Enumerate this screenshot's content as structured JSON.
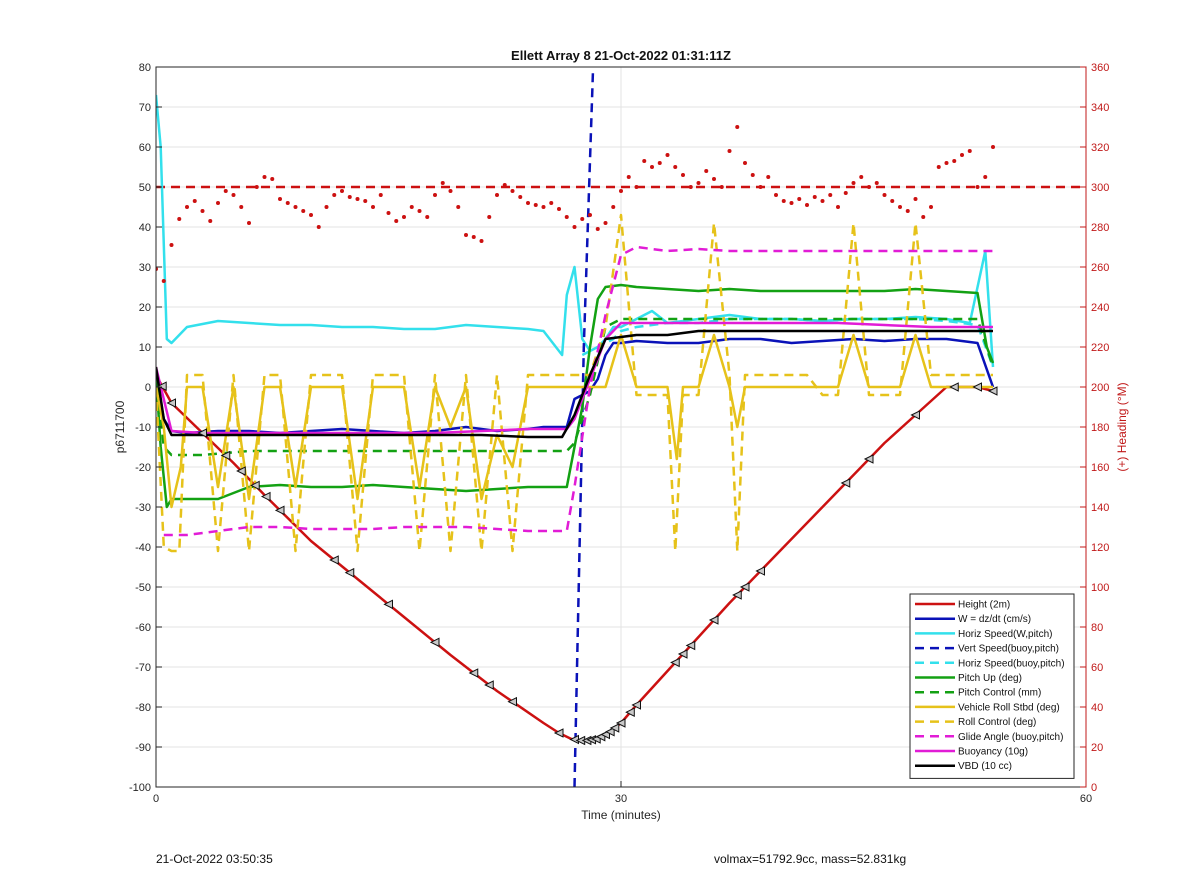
{
  "chart_data": {
    "type": "line",
    "title": "Ellett Array 8 21-Oct-2022 01:31:11Z",
    "xlabel": "Time (minutes)",
    "ylabel_left": "p6711700",
    "ylabel_right": "(+) Heading (°M)",
    "xlim": [
      0,
      60
    ],
    "ylim_left": [
      -100,
      80
    ],
    "ylim_right": [
      0,
      360
    ],
    "x_ticks": [
      0,
      30,
      60
    ],
    "y_ticks_left": [
      80,
      70,
      60,
      50,
      40,
      30,
      20,
      10,
      0,
      -10,
      -20,
      -30,
      -40,
      -50,
      -60,
      -70,
      -80,
      -90,
      -100
    ],
    "y_ticks_right": [
      360,
      340,
      320,
      300,
      280,
      260,
      240,
      220,
      200,
      180,
      160,
      140,
      120,
      100,
      80,
      60,
      40,
      20,
      0
    ],
    "grid": true,
    "legend_position": "bottom-right",
    "colors": {
      "red": "#cc1111",
      "blue": "#0a12b8",
      "cyan": "#33e0ec",
      "green": "#13a113",
      "yellow": "#e6c21a",
      "magenta": "#e11cd6",
      "black": "#000000",
      "right_axis": "#c01818"
    },
    "series": [
      {
        "name": "Height (2m)",
        "color": "red",
        "style": "solid",
        "axis": "left",
        "x": [
          0,
          1,
          3,
          5,
          7,
          10,
          13,
          16,
          19,
          22,
          25,
          26,
          26.8,
          27.6,
          28.4,
          29.2,
          30,
          31,
          33,
          35,
          37,
          39,
          41,
          43,
          45,
          47,
          49,
          51,
          53,
          54
        ],
        "y": [
          3,
          -4,
          -11.5,
          -19,
          -27,
          -38.5,
          -48,
          -57.5,
          -67,
          -76,
          -84,
          -86.5,
          -88,
          -88.5,
          -88,
          -86.5,
          -84,
          -79.5,
          -71,
          -62.5,
          -54,
          -46,
          -38,
          -30,
          -22,
          -14,
          -7,
          0,
          0,
          -1
        ]
      },
      {
        "name": "W = dz/dt (cm/s)",
        "color": "blue",
        "style": "solid",
        "axis": "left",
        "x": [
          0,
          0.5,
          1,
          2,
          4,
          6,
          8,
          10,
          12,
          14,
          16,
          18,
          20,
          22,
          24,
          25,
          26.5,
          27,
          27.5,
          28,
          28.5,
          29,
          29.5,
          30,
          31,
          33,
          35,
          37,
          39,
          41,
          43,
          45,
          47,
          49,
          51,
          53,
          54
        ],
        "y": [
          3,
          -8,
          -11,
          -11.5,
          -11,
          -11,
          -11.5,
          -11,
          -10.5,
          -11,
          -11.5,
          -11,
          -10,
          -11,
          -10.5,
          -10,
          -10,
          -3,
          -2,
          -1,
          2,
          8,
          11,
          11,
          11.5,
          11,
          11,
          12,
          12,
          11,
          11.5,
          12,
          11.5,
          12,
          12,
          11,
          0
        ]
      },
      {
        "name": "Horiz Speed(W,pitch)",
        "color": "cyan",
        "style": "solid",
        "axis": "left",
        "x": [
          0,
          0.3,
          0.7,
          1,
          2,
          4,
          6,
          8,
          10,
          12,
          14,
          16,
          18,
          20,
          22,
          24,
          25,
          26.2,
          26.5,
          27,
          27.5,
          28,
          28.5,
          29,
          29.5,
          30,
          31,
          32,
          33,
          35,
          37,
          39,
          41,
          43,
          45,
          47,
          49,
          51,
          52.5,
          53.5,
          54
        ],
        "y": [
          73,
          60,
          12,
          11,
          15,
          16.5,
          16,
          15.5,
          15.5,
          15,
          15,
          14.5,
          14.5,
          15.5,
          15,
          14.5,
          14,
          8,
          23,
          30,
          12,
          9,
          10,
          12,
          15,
          15,
          17,
          19,
          16,
          17,
          18,
          17,
          17,
          16.5,
          17,
          17,
          17.5,
          17,
          16,
          34,
          5
        ]
      },
      {
        "name": "Vert Speed(buoy,pitch)",
        "color": "blue",
        "style": "dashed",
        "axis": "left",
        "x": [
          27,
          27.6,
          28.2
        ],
        "y": [
          -100,
          10,
          80
        ]
      },
      {
        "name": "Horiz Speed(buoy,pitch)",
        "color": "cyan",
        "style": "dashed",
        "axis": "left",
        "x": [
          27.5,
          28.5,
          29.5,
          30,
          31,
          33,
          35,
          37,
          39,
          41,
          43,
          45,
          47,
          49,
          51,
          53,
          54
        ],
        "y": [
          8,
          10,
          12,
          14,
          15,
          16,
          16,
          17,
          17,
          17,
          16.5,
          17,
          17,
          17,
          16.5,
          15.5,
          5
        ]
      },
      {
        "name": "Pitch Up (deg)",
        "color": "green",
        "style": "solid",
        "axis": "left",
        "x": [
          0,
          0.3,
          0.7,
          1,
          2,
          4,
          6,
          8,
          10,
          12,
          14,
          16,
          18,
          20,
          22,
          24,
          25,
          26.5,
          27,
          27.5,
          28,
          28.5,
          29,
          30,
          31,
          33,
          35,
          37,
          39,
          41,
          43,
          45,
          47,
          49,
          51,
          53,
          53.6,
          54
        ],
        "y": [
          3,
          -15,
          -30,
          -28,
          -28,
          -28,
          -25,
          -24.5,
          -25,
          -25,
          -24.5,
          -25,
          -25.5,
          -26,
          -25.5,
          -25,
          -25,
          -25,
          -15,
          -5,
          10,
          22,
          25,
          25.5,
          25,
          24.5,
          24,
          24.5,
          24,
          24,
          24,
          24,
          24,
          24.5,
          24,
          23.5,
          10,
          6
        ]
      },
      {
        "name": "Pitch Control (mm)",
        "color": "green",
        "style": "dashed",
        "axis": "left",
        "x": [
          0,
          0.5,
          1,
          3,
          6,
          9,
          12,
          15,
          18,
          21,
          24,
          25.5,
          26.5,
          27,
          28,
          29,
          30,
          32,
          35,
          38,
          41,
          44,
          47,
          50,
          53,
          54
        ],
        "y": [
          3,
          -15,
          -17,
          -17,
          -16,
          -16,
          -16,
          -16,
          -16,
          -16,
          -16,
          -16,
          -16,
          -14,
          -2,
          15,
          17,
          17,
          17,
          17,
          17,
          17,
          17,
          17,
          17,
          5
        ]
      },
      {
        "name": "Vehicle Roll Stbd (deg)",
        "color": "yellow",
        "style": "solid",
        "axis": "left",
        "x": [
          0,
          0.5,
          1,
          1.6,
          2,
          3,
          4,
          5,
          6,
          7,
          8,
          9,
          10,
          11,
          12,
          13,
          14,
          15,
          16,
          17,
          18,
          19,
          20,
          21,
          22,
          23,
          24,
          25,
          26,
          27,
          28,
          29,
          30,
          31,
          32,
          33,
          33.6,
          34,
          35,
          36,
          37,
          37.5,
          38,
          39,
          40,
          41,
          42,
          43,
          44,
          45,
          46,
          47,
          48,
          49,
          50,
          51,
          52,
          53,
          54
        ],
        "y": [
          0,
          -10,
          -30,
          -20,
          0,
          0,
          -25,
          0,
          -28,
          0,
          0,
          -25,
          0,
          0,
          0,
          -28,
          0,
          0,
          0,
          -25,
          0,
          -10,
          0,
          -28,
          -12,
          -20,
          0,
          0,
          0,
          0,
          0,
          0,
          13,
          0,
          0,
          0,
          -18,
          0,
          0,
          13,
          0,
          -10,
          0,
          0,
          0,
          0,
          0,
          0,
          0,
          13,
          0,
          0,
          0,
          13,
          0,
          0,
          0,
          0,
          0
        ]
      },
      {
        "name": "Roll Control (deg)",
        "color": "yellow",
        "style": "dashed",
        "axis": "left",
        "x": [
          0,
          0.5,
          1,
          1.5,
          2,
          3,
          4,
          5,
          6,
          7,
          8,
          9,
          10,
          11,
          12,
          13,
          14,
          15,
          16,
          17,
          18,
          19,
          20,
          21,
          22,
          23,
          24,
          25,
          26,
          27,
          28,
          29,
          30,
          31,
          32,
          33,
          33.5,
          34,
          35,
          36,
          37,
          37.5,
          38,
          39,
          40,
          41,
          42,
          43,
          44,
          45,
          46,
          47,
          48,
          49,
          50,
          51,
          52,
          53,
          54
        ],
        "y": [
          0,
          -40,
          -41,
          -41,
          3,
          3,
          -41,
          3,
          -41,
          3,
          3,
          -41,
          3,
          3,
          3,
          -41,
          3,
          3,
          3,
          -41,
          3,
          -41,
          3,
          -41,
          3,
          -41,
          3,
          3,
          3,
          3,
          3,
          15,
          43,
          -2,
          -2,
          -2,
          -41,
          -2,
          -2,
          41,
          3,
          -41,
          3,
          3,
          3,
          3,
          3,
          -2,
          -2,
          41,
          -2,
          -2,
          -2,
          41,
          3,
          3,
          3,
          3,
          3
        ]
      },
      {
        "name": "Glide Angle (buoy,pitch)",
        "color": "magenta",
        "style": "dashed",
        "axis": "left",
        "x": [
          0.5,
          1,
          2,
          4,
          6,
          8,
          10,
          12,
          14,
          16,
          18,
          20,
          22,
          24,
          25.5,
          26.5,
          27,
          28,
          29,
          30,
          31,
          33,
          35,
          37,
          39,
          41,
          43,
          45,
          47,
          49,
          51,
          53,
          54
        ],
        "y": [
          -37,
          -37,
          -37,
          -36,
          -35,
          -35,
          -35.5,
          -35.5,
          -35.5,
          -35,
          -35,
          -35,
          -35.5,
          -36,
          -36,
          -36,
          -25,
          0,
          18,
          33,
          35,
          34,
          34.5,
          34,
          34,
          34,
          34,
          34,
          34,
          34,
          34,
          34,
          34
        ]
      },
      {
        "name": "Buoyancy (10g)",
        "color": "magenta",
        "style": "solid",
        "axis": "left",
        "x": [
          0,
          1,
          3,
          6,
          9,
          12,
          15,
          18,
          21,
          24,
          26.5,
          27,
          28,
          29,
          30,
          32,
          35,
          38,
          41,
          44,
          47,
          50,
          53,
          54
        ],
        "y": [
          5,
          -11,
          -11.5,
          -11.5,
          -11.5,
          -11.5,
          -11.5,
          -11.5,
          -11,
          -10.5,
          -10.5,
          -8,
          2,
          12,
          16,
          16,
          16,
          16,
          16,
          16,
          15.5,
          15,
          15,
          15
        ]
      },
      {
        "name": "VBD (10 cc)",
        "color": "black",
        "style": "solid",
        "axis": "left",
        "x": [
          0,
          0.5,
          1,
          3,
          6,
          9,
          12,
          15,
          18,
          21,
          24,
          26.2,
          27,
          28,
          29,
          30,
          31,
          33,
          35,
          37,
          40,
          44,
          48,
          52,
          54
        ],
        "y": [
          5,
          -8,
          -12,
          -12,
          -12,
          -12,
          -12,
          -12,
          -12,
          -12,
          -12.5,
          -12.5,
          -7,
          3,
          12,
          12.5,
          13,
          13,
          14,
          14,
          14,
          14,
          14,
          14,
          14
        ]
      }
    ],
    "reference_lines": [
      {
        "color": "red",
        "style": "dashed",
        "axis": "right",
        "y": 300
      },
      {
        "color": "blue",
        "style": "dashed",
        "axis": "left",
        "x": 27.6
      }
    ],
    "heading_points": {
      "color": "red",
      "axis": "right",
      "x": [
        0,
        0.5,
        1,
        1.5,
        2,
        2.5,
        3,
        3.5,
        4,
        4.5,
        5,
        5.5,
        6,
        6.5,
        7,
        7.5,
        8,
        8.5,
        9,
        9.5,
        10,
        10.5,
        11,
        11.5,
        12,
        12.5,
        13,
        13.5,
        14,
        14.5,
        15,
        15.5,
        16,
        16.5,
        17,
        17.5,
        18,
        18.5,
        19,
        19.5,
        20,
        20.5,
        21,
        21.5,
        22,
        22.5,
        23,
        23.5,
        24,
        24.5,
        25,
        25.5,
        26,
        26.5,
        27,
        27.5,
        28,
        28.5,
        29,
        29.5,
        30,
        30.5,
        31,
        31.5,
        32,
        32.5,
        33,
        33.5,
        34,
        34.5,
        35,
        35.5,
        36,
        36.5,
        37,
        37.5,
        38,
        38.5,
        39,
        39.5,
        40,
        40.5,
        41,
        41.5,
        42,
        42.5,
        43,
        43.5,
        44,
        44.5,
        45,
        45.5,
        46,
        46.5,
        47,
        47.5,
        48,
        48.5,
        49,
        49.5,
        50,
        50.5,
        51,
        51.5,
        52,
        52.5,
        53,
        53.5,
        54
      ],
      "y": [
        259,
        253,
        271,
        284,
        290,
        293,
        288,
        283,
        292,
        298,
        296,
        290,
        282,
        300,
        305,
        304,
        294,
        292,
        290,
        288,
        286,
        280,
        290,
        296,
        298,
        295,
        294,
        293,
        290,
        296,
        287,
        283,
        285,
        290,
        288,
        285,
        296,
        302,
        298,
        290,
        276,
        275,
        273,
        285,
        296,
        301,
        298,
        295,
        292,
        291,
        290,
        292,
        289,
        285,
        280,
        284,
        286,
        279,
        282,
        290,
        298,
        305,
        300,
        313,
        310,
        312,
        316,
        310,
        306,
        300,
        302,
        308,
        304,
        300,
        318,
        330,
        312,
        306,
        300,
        305,
        296,
        293,
        292,
        294,
        291,
        295,
        293,
        296,
        290,
        297,
        302,
        305,
        300,
        302,
        296,
        293,
        290,
        288,
        294,
        285,
        290,
        310,
        312,
        313,
        316,
        318,
        300,
        305,
        320
      ]
    },
    "markers": {
      "type": "left-pointing-triangle",
      "on_series": "Height (2m)",
      "x": [
        0.4,
        1,
        3,
        4.5,
        5.5,
        6.4,
        7.1,
        8,
        11.5,
        12.5,
        15,
        18,
        20.5,
        21.5,
        23,
        26,
        27,
        27.4,
        27.8,
        28.1,
        28.4,
        28.7,
        29.0,
        29.3,
        29.6,
        30,
        30.6,
        31,
        33.5,
        34,
        34.5,
        36,
        37.5,
        38,
        39,
        44.5,
        46,
        49,
        51.5,
        53,
        54
      ]
    }
  },
  "footer": {
    "left": "21-Oct-2022 03:50:35",
    "right": "volmax=51792.9cc, mass=52.831kg"
  }
}
